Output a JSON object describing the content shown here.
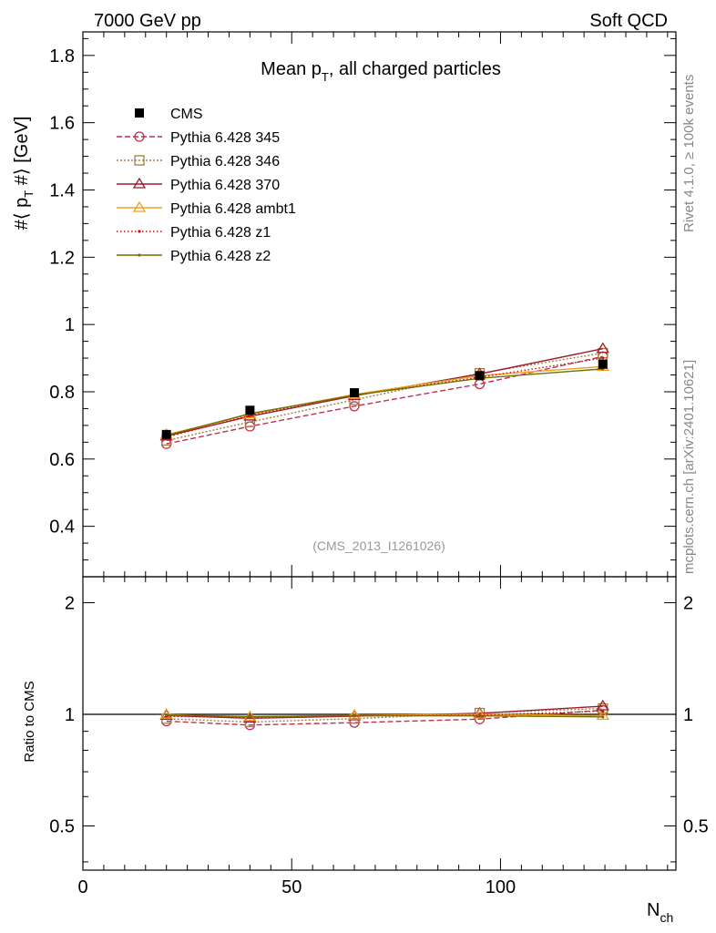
{
  "header": {
    "left": "7000 GeV pp",
    "right": "Soft QCD"
  },
  "side_labels": {
    "rivet": "Rivet 4.1.0, ≥ 100k events",
    "mcplots": "mcplots.cern.ch [arXiv:2401.10621]"
  },
  "chart_data": {
    "type": "line",
    "title_main": "Mean p",
    "title_sub": "T",
    "title_rest": ", all charged particles",
    "analysis_tag": "(CMS_2013_I1261026)",
    "ylabel_prefix": "#⟨ p",
    "ylabel_sub": "T",
    "ylabel_suffix": " #⟩ [GeV]",
    "ratio_ylabel": "Ratio to CMS",
    "xlabel_main": "N",
    "xlabel_sub": "ch",
    "xlim": [
      0,
      142
    ],
    "ylim": [
      0.25,
      1.87
    ],
    "ratio_ylim": [
      0.38,
      2.35
    ],
    "xticks": [
      {
        "value": 0,
        "label": "0"
      },
      {
        "value": 50,
        "label": "50"
      },
      {
        "value": 100,
        "label": "100"
      }
    ],
    "yticks": [
      {
        "value": 0.4,
        "label": "0.4"
      },
      {
        "value": 0.6,
        "label": "0.6"
      },
      {
        "value": 0.8,
        "label": "0.8"
      },
      {
        "value": 1.0,
        "label": "1"
      },
      {
        "value": 1.2,
        "label": "1.2"
      },
      {
        "value": 1.4,
        "label": "1.4"
      },
      {
        "value": 1.6,
        "label": "1.6"
      },
      {
        "value": 1.8,
        "label": "1.8"
      }
    ],
    "ratio_yticks": [
      {
        "value": 0.5,
        "label": "0.5"
      },
      {
        "value": 1,
        "label": "1"
      },
      {
        "value": 2,
        "label": "2"
      }
    ],
    "x": [
      20,
      40,
      65,
      95,
      124.5
    ],
    "data": {
      "name": "CMS",
      "values": [
        0.673,
        0.745,
        0.797,
        0.848,
        0.882
      ]
    },
    "series": [
      {
        "name": "Pythia 6.428 345",
        "color": "#c0304a",
        "marker": "circle",
        "dash": "6,3",
        "values": [
          0.645,
          0.697,
          0.757,
          0.823,
          0.905
        ]
      },
      {
        "name": "Pythia 6.428 346",
        "color": "#a08040",
        "marker": "square",
        "dash": "2,2",
        "values": [
          0.655,
          0.71,
          0.776,
          0.855,
          0.915
        ]
      },
      {
        "name": "Pythia 6.428 370",
        "color": "#9b1b30",
        "marker": "triangle",
        "dash": "",
        "values": [
          0.668,
          0.727,
          0.788,
          0.853,
          0.928
        ]
      },
      {
        "name": "Pythia 6.428 ambt1",
        "color": "#f0a020",
        "marker": "triangle",
        "dash": "",
        "values": [
          0.672,
          0.733,
          0.792,
          0.848,
          0.875
        ]
      },
      {
        "name": "Pythia 6.428 z1",
        "color": "#cc1111",
        "marker": "dot",
        "dash": "1.5,2.5",
        "values": [
          0.665,
          0.73,
          0.79,
          0.843,
          0.9
        ]
      },
      {
        "name": "Pythia 6.428 z2",
        "color": "#707000",
        "marker": "dot",
        "dash": "",
        "values": [
          0.67,
          0.735,
          0.79,
          0.84,
          0.868
        ]
      }
    ]
  }
}
